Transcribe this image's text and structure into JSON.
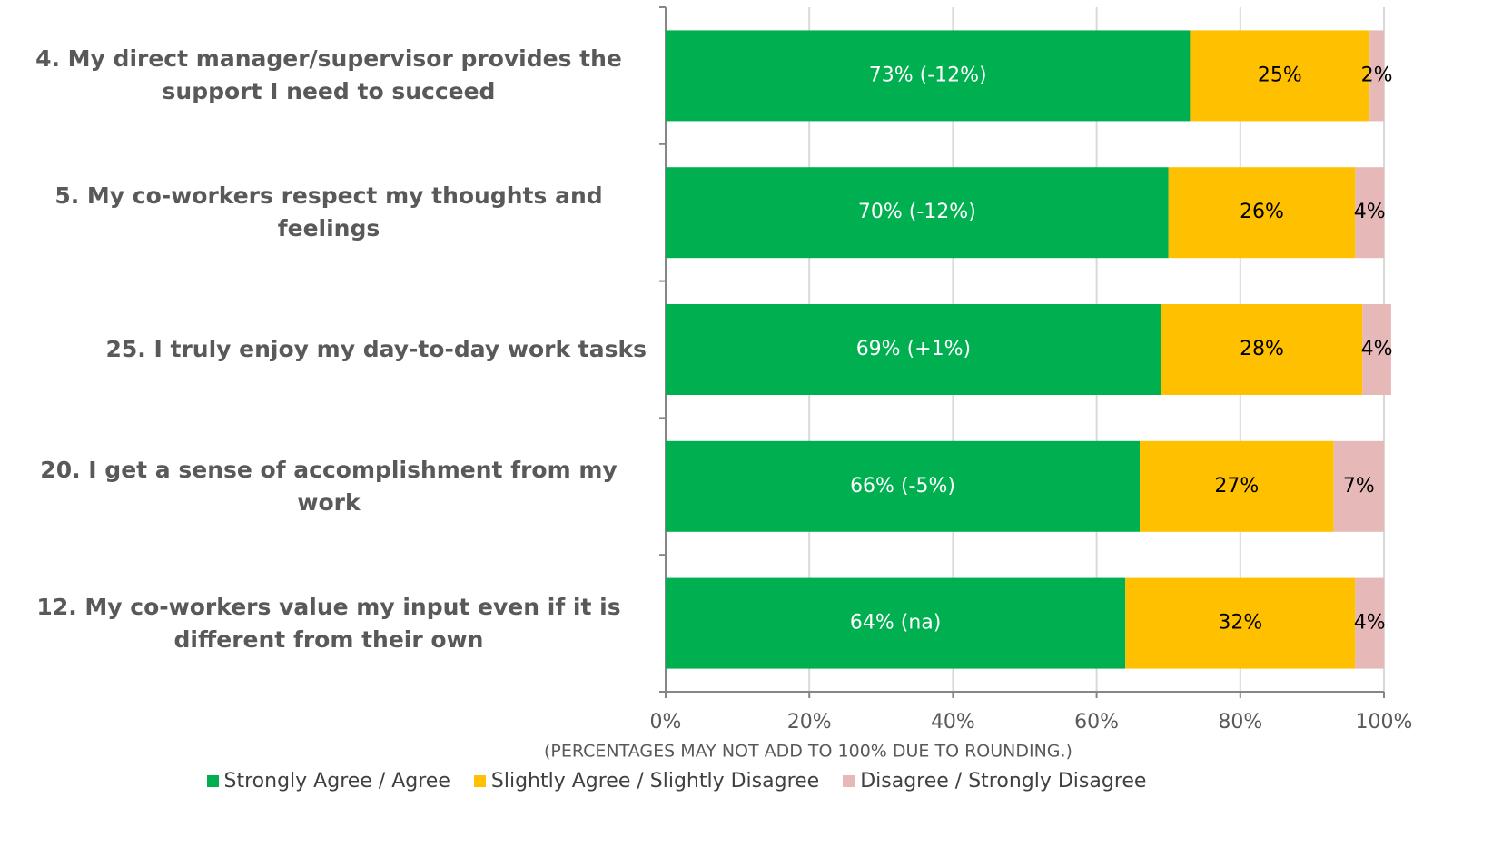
{
  "chart_data": {
    "type": "stacked_bar_horizontal",
    "categories": [
      "4. My direct manager/supervisor provides the support I need to succeed",
      "5. My co-workers respect my thoughts and feelings",
      "25. I truly enjoy my day-to-day work tasks",
      "20. I get a sense of accomplishment from my work",
      "12. My co-workers value my input even if it is different from their own"
    ],
    "series": [
      {
        "name": "Strongly Agree / Agree",
        "color": "#00b050",
        "values": [
          73,
          70,
          69,
          66,
          64
        ],
        "value_labels": [
          "73% (-12%)",
          "70% (-12%)",
          "69% (+1%)",
          "66% (-5%)",
          "64% (na)"
        ]
      },
      {
        "name": "Slightly Agree / Slightly Disagree",
        "color": "#ffc000",
        "values": [
          25,
          26,
          28,
          27,
          32
        ],
        "value_labels": [
          "25%",
          "26%",
          "28%",
          "27%",
          "32%"
        ]
      },
      {
        "name": "Disagree / Strongly Disagree",
        "color": "#e6b9b8",
        "values": [
          2,
          4,
          4,
          7,
          4
        ],
        "value_labels": [
          "2%",
          "4%",
          "4%",
          "7%",
          "4%"
        ]
      }
    ],
    "xlim": [
      0,
      100
    ],
    "xticks": [
      {
        "value": 0,
        "label": "0%"
      },
      {
        "value": 20,
        "label": "20%"
      },
      {
        "value": 40,
        "label": "40%"
      },
      {
        "value": 60,
        "label": "60%"
      },
      {
        "value": 80,
        "label": "80%"
      },
      {
        "value": 100,
        "label": "100%"
      }
    ],
    "note": "(PERCENTAGES MAY NOT ADD TO 100% DUE TO ROUNDING.)",
    "grid": true,
    "legend": "bottom"
  }
}
